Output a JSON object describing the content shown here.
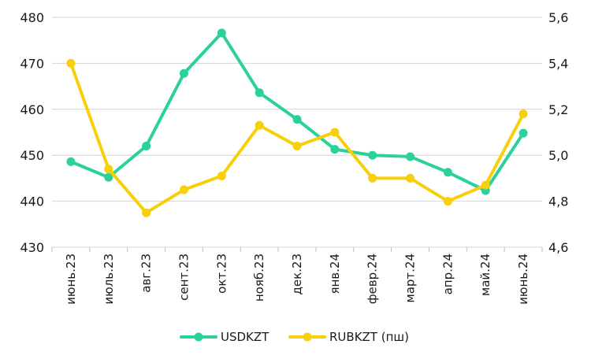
{
  "chart_data": {
    "type": "line",
    "categories": [
      "июнь.23",
      "июль.23",
      "авг.23",
      "сент.23",
      "окт.23",
      "нояб.23",
      "дек.23",
      "янв.24",
      "февр.24",
      "март.24",
      "апр.24",
      "май.24",
      "июнь.24"
    ],
    "series": [
      {
        "name": "USDKZT",
        "axis": "left",
        "color": "#2bd19a",
        "values": [
          448.6,
          445.2,
          452.0,
          467.8,
          476.6,
          463.6,
          457.8,
          451.3,
          450.0,
          449.7,
          446.3,
          442.3,
          454.8
        ]
      },
      {
        "name": "RUBKZT (пш)",
        "axis": "right",
        "color": "#f7cf0a",
        "values": [
          5.4,
          4.94,
          4.75,
          4.85,
          4.91,
          5.13,
          5.04,
          5.1,
          4.9,
          4.9,
          4.8,
          4.87,
          5.18
        ]
      }
    ],
    "y_left": {
      "lim": [
        430,
        480
      ],
      "ticks": [
        "430",
        "440",
        "450",
        "460",
        "470",
        "480"
      ]
    },
    "y_right": {
      "lim": [
        4.6,
        5.6
      ],
      "ticks": [
        "4,6",
        "4,8",
        "5,0",
        "5,2",
        "5,4",
        "5,6"
      ]
    },
    "grid": true,
    "legend": "bottom"
  }
}
